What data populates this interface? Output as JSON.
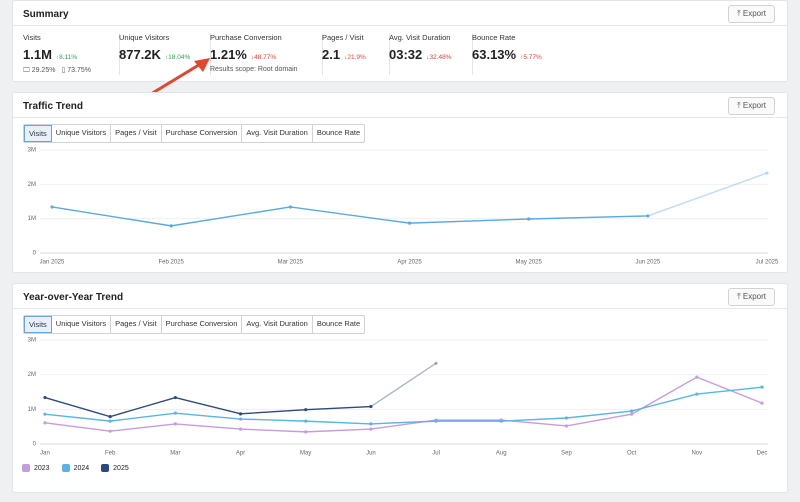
{
  "summary": {
    "title": "Summary",
    "export": "Export",
    "scope_note": "Results scope: Root domain",
    "metrics": [
      {
        "label": "Visits",
        "value": "1.1M",
        "change": "↑8.11%",
        "change_color": "#2e9e5b",
        "desktop": "29.25%",
        "mobile": "73.75%"
      },
      {
        "label": "Unique Visitors",
        "value": "877.2K",
        "change": "↑18.04%",
        "change_color": "#2e9e5b"
      },
      {
        "label": "Purchase Conversion",
        "value": "1.21%",
        "change": "↓48.77%",
        "change_color": "#d9443b"
      },
      {
        "label": "Pages / Visit",
        "value": "2.1",
        "change": "↓21.9%",
        "change_color": "#d9443b"
      },
      {
        "label": "Avg. Visit Duration",
        "value": "03:32",
        "change": "↓32.48%",
        "change_color": "#d9443b"
      },
      {
        "label": "Bounce Rate",
        "value": "63.13%",
        "change": "↑5.77%",
        "change_color": "#d9443b"
      }
    ]
  },
  "traffic_trend": {
    "title": "Traffic Trend",
    "export": "Export",
    "tabs": [
      "Visits",
      "Unique Visitors",
      "Pages / Visit",
      "Purchase Conversion",
      "Avg. Visit Duration",
      "Bounce Rate"
    ]
  },
  "yoy_trend": {
    "title": "Year-over-Year Trend",
    "export": "Export",
    "tabs": [
      "Visits",
      "Unique Visitors",
      "Pages / Visit",
      "Purchase Conversion",
      "Avg. Visit Duration",
      "Bounce Rate"
    ]
  },
  "chart_data": [
    {
      "type": "line",
      "categories": [
        "Jan 2025",
        "Feb 2025",
        "Mar 2025",
        "Apr 2025",
        "May 2025",
        "Jun 2025",
        "Jul 2025"
      ],
      "values": [
        1340000,
        790000,
        1340000,
        870000,
        990000,
        1080000,
        2330000
      ],
      "color": "#5aa9e0",
      "incomplete_last": true,
      "ylim": [
        0,
        3000000
      ],
      "yticks": [
        0,
        {
          "value": 1000000,
          "label": "1M"
        },
        {
          "value": 2000000,
          "label": "2M"
        },
        {
          "value": 3000000,
          "label": "3M"
        }
      ],
      "grid": true
    },
    {
      "type": "line",
      "categories": [
        "Jan",
        "Feb",
        "Mar",
        "Apr",
        "May",
        "Jun",
        "Jul",
        "Aug",
        "Sep",
        "Oct",
        "Nov",
        "Dec"
      ],
      "series": [
        {
          "name": "2023",
          "color": "#c79be0",
          "values": [
            610000,
            370000,
            580000,
            430000,
            350000,
            430000,
            690000,
            690000,
            520000,
            860000,
            1930000,
            1180000
          ]
        },
        {
          "name": "2024",
          "color": "#5ab4e5",
          "values": [
            860000,
            660000,
            890000,
            720000,
            660000,
            580000,
            660000,
            660000,
            750000,
            950000,
            1440000,
            1640000
          ]
        },
        {
          "name": "2025",
          "color": "#2b4a7e",
          "incomplete_last": true,
          "values": [
            1340000,
            790000,
            1340000,
            870000,
            990000,
            1080000,
            2330000,
            null,
            null,
            null,
            null,
            null
          ]
        }
      ],
      "ylim": [
        0,
        3000000
      ],
      "yticks": [
        0,
        {
          "value": 1000000,
          "label": "1M"
        },
        {
          "value": 2000000,
          "label": "2M"
        },
        {
          "value": 3000000,
          "label": "3M"
        }
      ],
      "grid": true
    }
  ]
}
